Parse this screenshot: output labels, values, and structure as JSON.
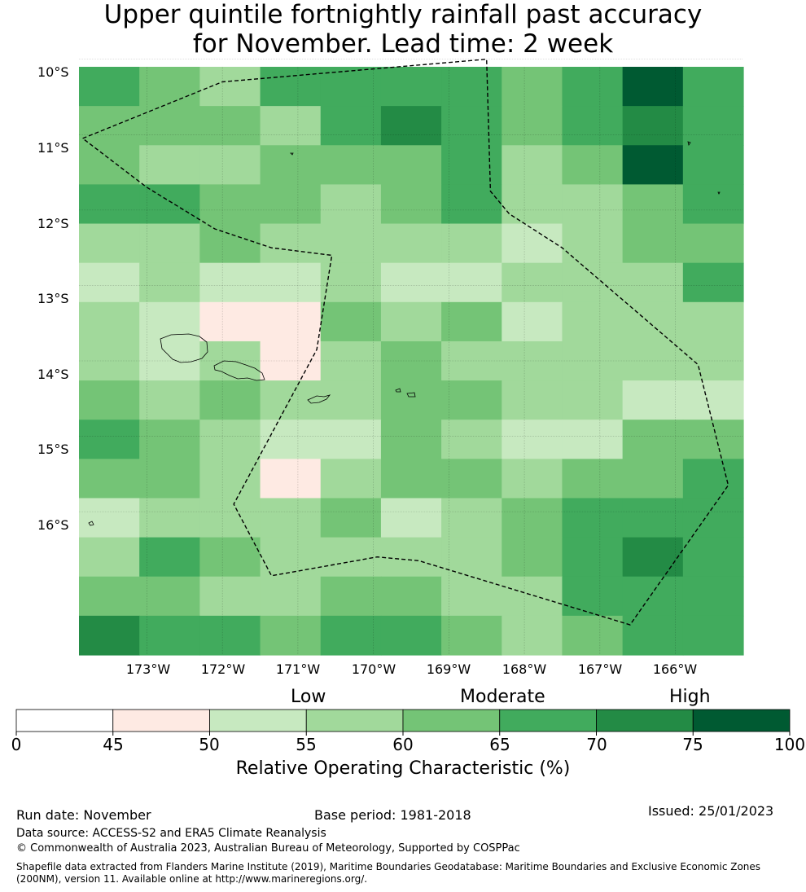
{
  "title": {
    "line1": "Upper quintile fortnightly rainfall past accuracy",
    "line2": "for November. Lead time: 2 week"
  },
  "map": {
    "lat_labels": [
      "10°S",
      "11°S",
      "12°S",
      "13°S",
      "14°S",
      "15°S",
      "16°S"
    ],
    "lon_labels": [
      "173°W",
      "172°W",
      "171°W",
      "170°W",
      "169°W",
      "168°W",
      "167°W",
      "166°W"
    ],
    "grid_values": [
      [
        65,
        60,
        55,
        65,
        65,
        65,
        65,
        60,
        65,
        75,
        65
      ],
      [
        60,
        60,
        60,
        55,
        65,
        70,
        65,
        60,
        65,
        70,
        65
      ],
      [
        60,
        55,
        55,
        60,
        60,
        60,
        65,
        55,
        60,
        75,
        65
      ],
      [
        65,
        65,
        60,
        60,
        55,
        60,
        65,
        55,
        55,
        60,
        65
      ],
      [
        55,
        55,
        60,
        55,
        55,
        55,
        55,
        50,
        55,
        60,
        60
      ],
      [
        50,
        55,
        50,
        50,
        55,
        50,
        50,
        55,
        55,
        55,
        65
      ],
      [
        55,
        50,
        45,
        45,
        60,
        55,
        60,
        50,
        55,
        55,
        55
      ],
      [
        55,
        50,
        55,
        45,
        55,
        60,
        55,
        55,
        55,
        55,
        55
      ],
      [
        60,
        55,
        60,
        55,
        55,
        60,
        60,
        55,
        55,
        50,
        50
      ],
      [
        65,
        60,
        55,
        50,
        50,
        60,
        55,
        50,
        50,
        60,
        60
      ],
      [
        60,
        60,
        55,
        45,
        55,
        60,
        60,
        55,
        60,
        60,
        65
      ],
      [
        50,
        55,
        55,
        55,
        60,
        50,
        55,
        60,
        65,
        65,
        65
      ],
      [
        55,
        65,
        60,
        55,
        55,
        55,
        55,
        60,
        65,
        70,
        65
      ],
      [
        60,
        60,
        55,
        55,
        60,
        60,
        55,
        55,
        65,
        65,
        65
      ],
      [
        70,
        65,
        65,
        60,
        65,
        65,
        60,
        55,
        60,
        65,
        65
      ]
    ],
    "eez_boundary": [
      [
        -173.85,
        -11.05
      ],
      [
        -172.0,
        -10.3
      ],
      [
        -168.5,
        -10.0
      ],
      [
        -168.45,
        -11.75
      ],
      [
        -168.2,
        -12.05
      ],
      [
        -167.5,
        -12.5
      ],
      [
        -165.7,
        -14.05
      ],
      [
        -165.3,
        -15.65
      ],
      [
        -166.6,
        -17.5
      ],
      [
        -169.4,
        -16.65
      ],
      [
        -169.95,
        -16.6
      ],
      [
        -171.35,
        -16.85
      ],
      [
        -171.85,
        -15.9
      ],
      [
        -170.75,
        -13.85
      ],
      [
        -170.55,
        -12.6
      ],
      [
        -171.35,
        -12.5
      ],
      [
        -172.1,
        -12.25
      ],
      [
        -173.0,
        -11.7
      ]
    ]
  },
  "legend": {
    "category_low": "Low",
    "category_moderate": "Moderate",
    "category_high": "High",
    "ticks": [
      "0",
      "45",
      "50",
      "55",
      "60",
      "65",
      "70",
      "75",
      "100"
    ],
    "bin_colors": [
      "#ffffff",
      "#feeae3",
      "#c7e9c0",
      "#a1d99b",
      "#74c476",
      "#41ab5d",
      "#238b45",
      "#005a32"
    ],
    "label": "Relative Operating Characteristic (%)"
  },
  "footer": {
    "run_date": "Run date: November",
    "base_period": "Base period: 1981-2018",
    "issued": "Issued: 25/01/2023",
    "data_source": "Data source: ACCESS-S2 and ERA5 Climate Reanalysis",
    "copyright": "© Commonwealth of Australia 2023, Australian Bureau of Meteorology, Supported by COSPPac",
    "shapefile": "Shapefile data extracted from Flanders Marine Institute (2019), Maritime Boundaries Geodatabase: Maritime Boundaries and Exclusive Economic Zones (200NM), version 11. Available online at http://www.marineregions.org/."
  }
}
